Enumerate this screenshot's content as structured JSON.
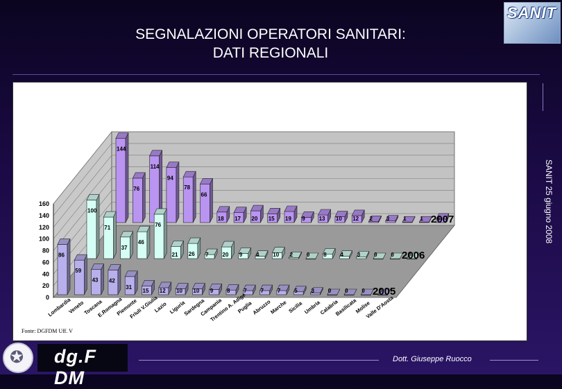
{
  "title_line1": "SEGNALAZIONI OPERATORI SANITARI:",
  "title_line2": "DATI REGIONALI",
  "logo_text": "SANIT",
  "side_text": "SANIT 25 giugno 2008",
  "source_text": "Fonte: DGFDM Uff. V",
  "brand_text": "dg.F DM",
  "author": "Dott. Giuseppe Ruocco",
  "colors": {
    "s2007": "#b994f1",
    "s2006": "#d5fff5",
    "s2005": "#b8b0ec"
  },
  "chart_data": {
    "type": "bar",
    "subtype": "3d-grouped",
    "categories": [
      "Lombardia",
      "Veneto",
      "Toscana",
      "E.Romagna",
      "Piemonte",
      "Friuli V.Giulia",
      "Lazio",
      "Liguria",
      "Sardegna",
      "Campania",
      "Trentino A. Adige",
      "Puglia",
      "Abruzzo",
      "Marche",
      "Sicilia",
      "Umbria",
      "Calabria",
      "Basilicata",
      "Molise",
      "Valle D'Aosta"
    ],
    "series": [
      {
        "name": "2005",
        "values": [
          86,
          59,
          43,
          42,
          31,
          15,
          12,
          10,
          10,
          9,
          8,
          7,
          7,
          7,
          5,
          3,
          0,
          0,
          0,
          0
        ]
      },
      {
        "name": "2006",
        "values": [
          100,
          71,
          37,
          46,
          76,
          21,
          26,
          7,
          20,
          9,
          4,
          10,
          2,
          0,
          8,
          4,
          3,
          0,
          0,
          0
        ]
      },
      {
        "name": "2007",
        "values": [
          144,
          76,
          114,
          94,
          78,
          66,
          18,
          17,
          20,
          15,
          19,
          9,
          13,
          10,
          12,
          2,
          3,
          1,
          1,
          6
        ]
      }
    ],
    "ylim": [
      0,
      160
    ],
    "yticks": [
      "0",
      "20",
      "40",
      "60",
      "80",
      "100",
      "120",
      "140",
      "160"
    ],
    "legend": [
      "2007",
      "2006",
      "2005"
    ]
  }
}
